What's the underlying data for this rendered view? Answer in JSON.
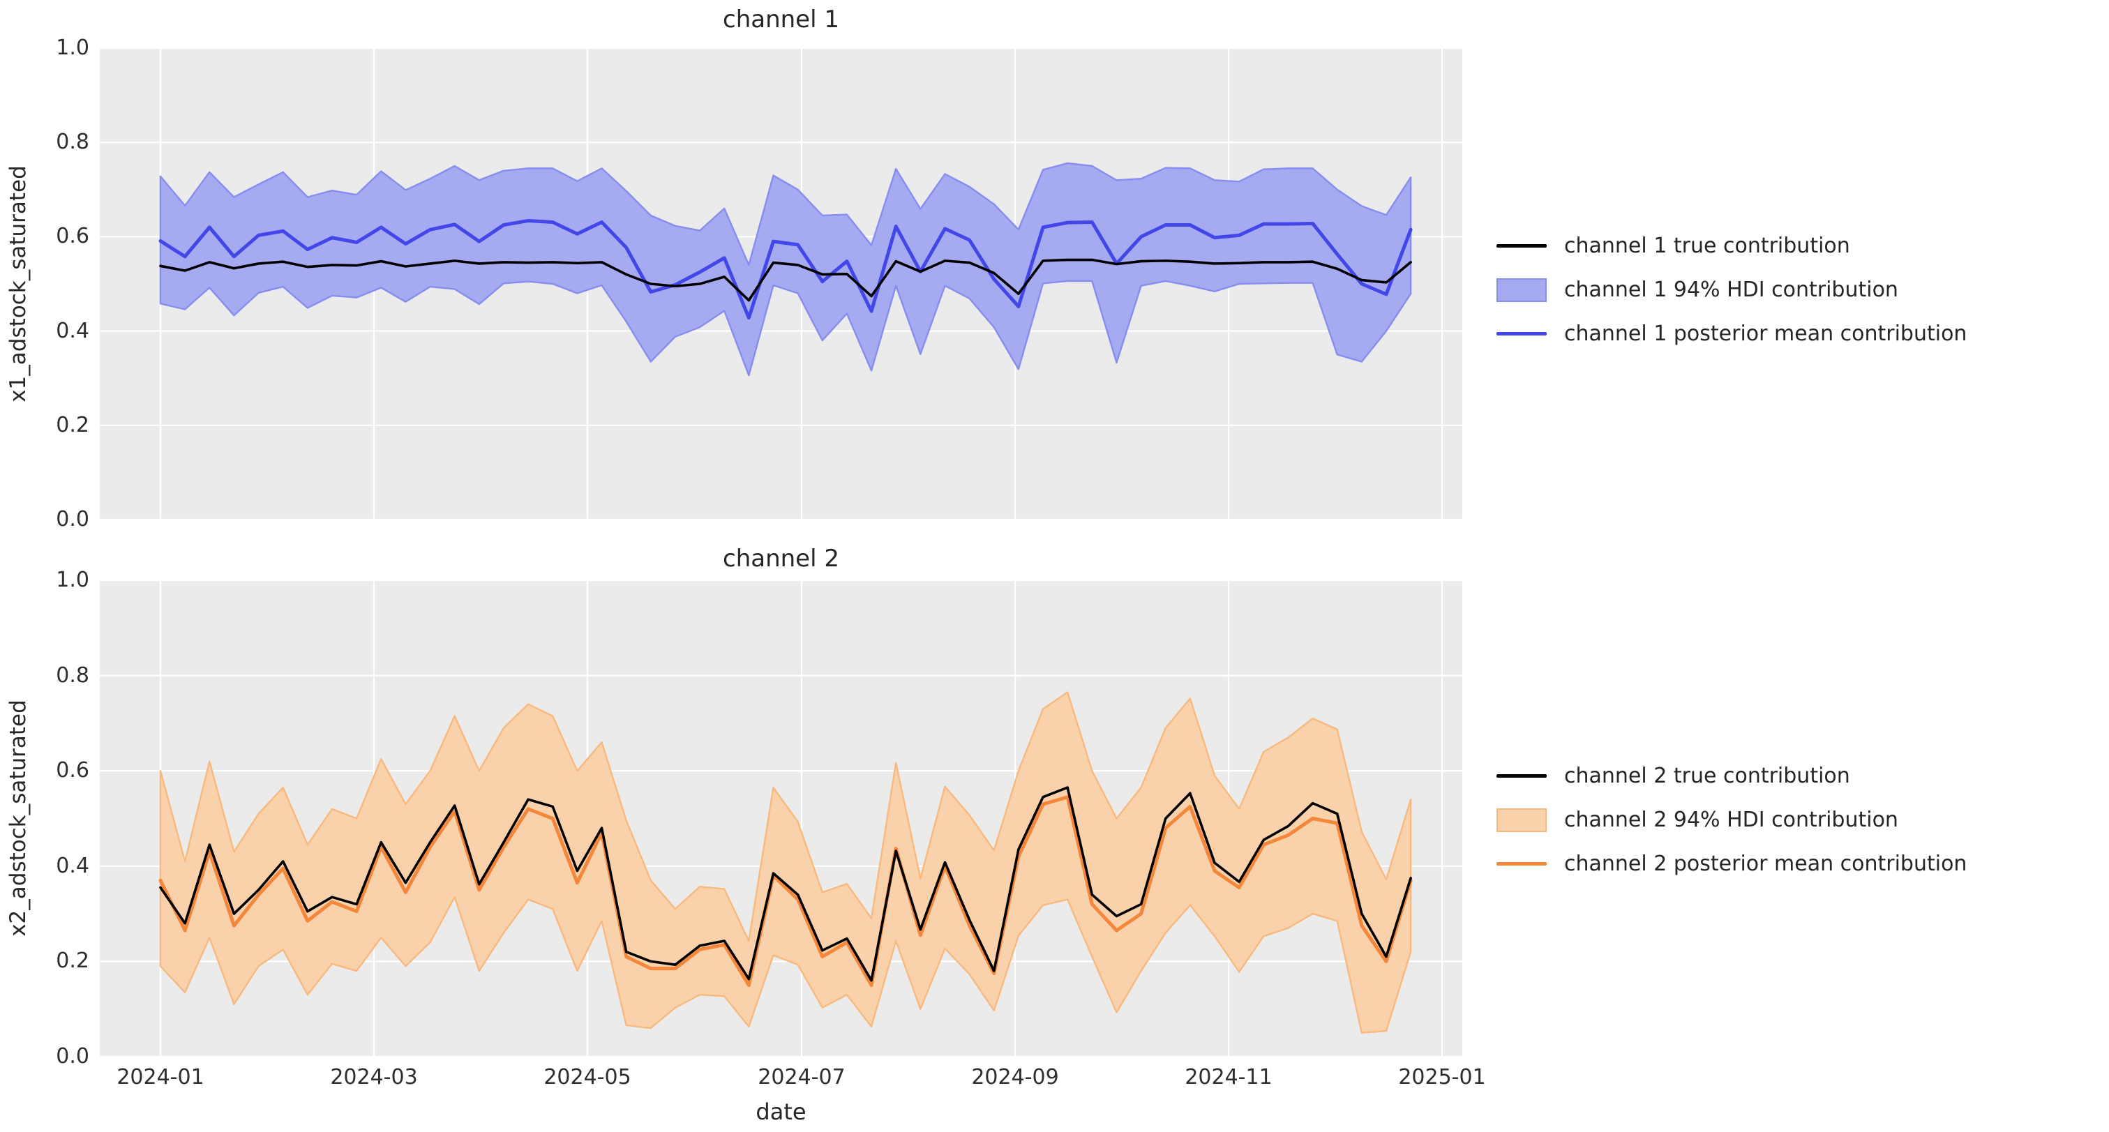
{
  "figure": {
    "background": "#ffffff",
    "plot_bg": "#ebebeb",
    "grid_color": "#ffffff",
    "text_color": "#2e2e2e"
  },
  "x_tick_labels": [
    "2024-01",
    "2024-03",
    "2024-05",
    "2024-07",
    "2024-09",
    "2024-11",
    "2025-01"
  ],
  "chart_data": [
    {
      "type": "line",
      "title": "channel 1",
      "ylabel": "x1_adstock_saturated",
      "xlabel": "date",
      "ylim": [
        0.0,
        1.0
      ],
      "y_tick_labels": [
        "0.0",
        "0.2",
        "0.4",
        "0.6",
        "0.8",
        "1.0"
      ],
      "x_start": "2024-01-01",
      "x_interval_days": 7,
      "n_points": 52,
      "grid": true,
      "legend_position": "right",
      "legend": [
        {
          "label": "channel 1 true contribution",
          "swatch": "line",
          "color": "#000000"
        },
        {
          "label": "channel 1 94% HDI contribution",
          "swatch": "patch",
          "fill": "#a6aaf1",
          "edge": "#878cef"
        },
        {
          "label": "channel 1 posterior mean contribution",
          "swatch": "line",
          "color": "#4347e8"
        }
      ],
      "series": [
        {
          "name": "channel 1 true contribution",
          "color": "#000000",
          "values": [
            0.538,
            0.528,
            0.546,
            0.533,
            0.543,
            0.547,
            0.536,
            0.54,
            0.539,
            0.548,
            0.537,
            0.543,
            0.549,
            0.543,
            0.546,
            0.545,
            0.546,
            0.544,
            0.546,
            0.52,
            0.5,
            0.495,
            0.5,
            0.515,
            0.465,
            0.545,
            0.54,
            0.52,
            0.521,
            0.474,
            0.548,
            0.526,
            0.549,
            0.545,
            0.523,
            0.479,
            0.549,
            0.551,
            0.551,
            0.542,
            0.548,
            0.549,
            0.547,
            0.543,
            0.544,
            0.546,
            0.546,
            0.547,
            0.532,
            0.508,
            0.503,
            0.546
          ]
        },
        {
          "name": "channel 1 posterior mean contribution",
          "color": "#4347e8",
          "values": [
            0.591,
            0.558,
            0.62,
            0.558,
            0.603,
            0.612,
            0.573,
            0.598,
            0.588,
            0.62,
            0.585,
            0.615,
            0.626,
            0.59,
            0.625,
            0.634,
            0.631,
            0.606,
            0.631,
            0.577,
            0.483,
            0.498,
            0.525,
            0.555,
            0.428,
            0.59,
            0.583,
            0.505,
            0.548,
            0.442,
            0.622,
            0.526,
            0.617,
            0.593,
            0.51,
            0.452,
            0.62,
            0.63,
            0.631,
            0.543,
            0.6,
            0.625,
            0.625,
            0.598,
            0.603,
            0.627,
            0.627,
            0.628,
            0.563,
            0.5,
            0.478,
            0.615
          ]
        }
      ],
      "band": {
        "name": "channel 1 94% HDI contribution",
        "fill": "#a6aaf1",
        "edge": "#878cef",
        "low": [
          0.458,
          0.446,
          0.492,
          0.433,
          0.481,
          0.494,
          0.449,
          0.475,
          0.471,
          0.492,
          0.462,
          0.494,
          0.489,
          0.457,
          0.501,
          0.505,
          0.5,
          0.48,
          0.497,
          0.42,
          0.335,
          0.388,
          0.408,
          0.443,
          0.306,
          0.497,
          0.48,
          0.38,
          0.437,
          0.316,
          0.496,
          0.351,
          0.496,
          0.469,
          0.408,
          0.319,
          0.501,
          0.506,
          0.506,
          0.333,
          0.496,
          0.506,
          0.496,
          0.484,
          0.5,
          0.501,
          0.502,
          0.502,
          0.35,
          0.335,
          0.4,
          0.479
        ],
        "high": [
          0.728,
          0.666,
          0.737,
          0.684,
          0.711,
          0.737,
          0.684,
          0.698,
          0.689,
          0.739,
          0.699,
          0.723,
          0.75,
          0.72,
          0.74,
          0.745,
          0.745,
          0.718,
          0.745,
          0.697,
          0.645,
          0.623,
          0.613,
          0.66,
          0.54,
          0.73,
          0.7,
          0.645,
          0.647,
          0.582,
          0.744,
          0.659,
          0.733,
          0.706,
          0.669,
          0.615,
          0.742,
          0.756,
          0.75,
          0.72,
          0.723,
          0.746,
          0.745,
          0.72,
          0.717,
          0.743,
          0.745,
          0.745,
          0.7,
          0.665,
          0.646,
          0.726
        ]
      }
    },
    {
      "type": "line",
      "title": "channel 2",
      "ylabel": "x2_adstock_saturated",
      "xlabel": "date",
      "ylim": [
        0.0,
        1.0
      ],
      "y_tick_labels": [
        "0.0",
        "0.2",
        "0.4",
        "0.6",
        "0.8",
        "1.0"
      ],
      "x_start": "2024-01-01",
      "x_interval_days": 7,
      "n_points": 52,
      "grid": true,
      "legend_position": "right",
      "legend": [
        {
          "label": "channel 2 true contribution",
          "swatch": "line",
          "color": "#000000"
        },
        {
          "label": "channel 2 94% HDI contribution",
          "swatch": "patch",
          "fill": "#f9d2ac",
          "edge": "#f7b97e"
        },
        {
          "label": "channel 2 posterior mean contribution",
          "swatch": "line",
          "color": "#f5873b"
        }
      ],
      "series": [
        {
          "name": "channel 2 true contribution",
          "color": "#000000",
          "values": [
            0.355,
            0.28,
            0.445,
            0.3,
            0.35,
            0.41,
            0.305,
            0.335,
            0.32,
            0.45,
            0.365,
            0.45,
            0.527,
            0.362,
            0.45,
            0.54,
            0.525,
            0.39,
            0.48,
            0.22,
            0.2,
            0.193,
            0.233,
            0.243,
            0.163,
            0.385,
            0.34,
            0.223,
            0.248,
            0.16,
            0.432,
            0.267,
            0.408,
            0.287,
            0.18,
            0.435,
            0.545,
            0.565,
            0.34,
            0.295,
            0.32,
            0.5,
            0.553,
            0.407,
            0.367,
            0.455,
            0.484,
            0.532,
            0.51,
            0.3,
            0.21,
            0.375
          ]
        },
        {
          "name": "channel 2 posterior mean contribution",
          "color": "#f5873b",
          "values": [
            0.37,
            0.265,
            0.43,
            0.275,
            0.34,
            0.395,
            0.285,
            0.325,
            0.305,
            0.44,
            0.345,
            0.44,
            0.515,
            0.35,
            0.44,
            0.52,
            0.5,
            0.365,
            0.47,
            0.21,
            0.185,
            0.185,
            0.225,
            0.235,
            0.15,
            0.38,
            0.33,
            0.21,
            0.24,
            0.15,
            0.437,
            0.255,
            0.4,
            0.275,
            0.175,
            0.42,
            0.53,
            0.545,
            0.32,
            0.265,
            0.3,
            0.48,
            0.525,
            0.39,
            0.355,
            0.445,
            0.465,
            0.5,
            0.49,
            0.275,
            0.2,
            0.37
          ]
        }
      ],
      "band": {
        "name": "channel 2 94% HDI contribution",
        "fill": "#f9d2ac",
        "edge": "#f7b97e",
        "low": [
          0.19,
          0.135,
          0.25,
          0.11,
          0.19,
          0.225,
          0.13,
          0.195,
          0.18,
          0.25,
          0.19,
          0.24,
          0.335,
          0.18,
          0.26,
          0.33,
          0.31,
          0.18,
          0.285,
          0.066,
          0.06,
          0.103,
          0.13,
          0.127,
          0.063,
          0.213,
          0.193,
          0.103,
          0.13,
          0.063,
          0.243,
          0.1,
          0.227,
          0.173,
          0.097,
          0.254,
          0.318,
          0.33,
          0.21,
          0.093,
          0.18,
          0.26,
          0.318,
          0.253,
          0.178,
          0.253,
          0.27,
          0.3,
          0.285,
          0.05,
          0.054,
          0.22
        ],
        "high": [
          0.6,
          0.41,
          0.62,
          0.43,
          0.51,
          0.565,
          0.445,
          0.52,
          0.5,
          0.625,
          0.53,
          0.6,
          0.715,
          0.6,
          0.69,
          0.74,
          0.715,
          0.6,
          0.66,
          0.496,
          0.37,
          0.31,
          0.357,
          0.352,
          0.243,
          0.565,
          0.493,
          0.345,
          0.363,
          0.29,
          0.617,
          0.374,
          0.567,
          0.507,
          0.433,
          0.6,
          0.73,
          0.765,
          0.6,
          0.5,
          0.565,
          0.69,
          0.752,
          0.59,
          0.52,
          0.64,
          0.67,
          0.71,
          0.687,
          0.472,
          0.372,
          0.54
        ]
      }
    }
  ]
}
